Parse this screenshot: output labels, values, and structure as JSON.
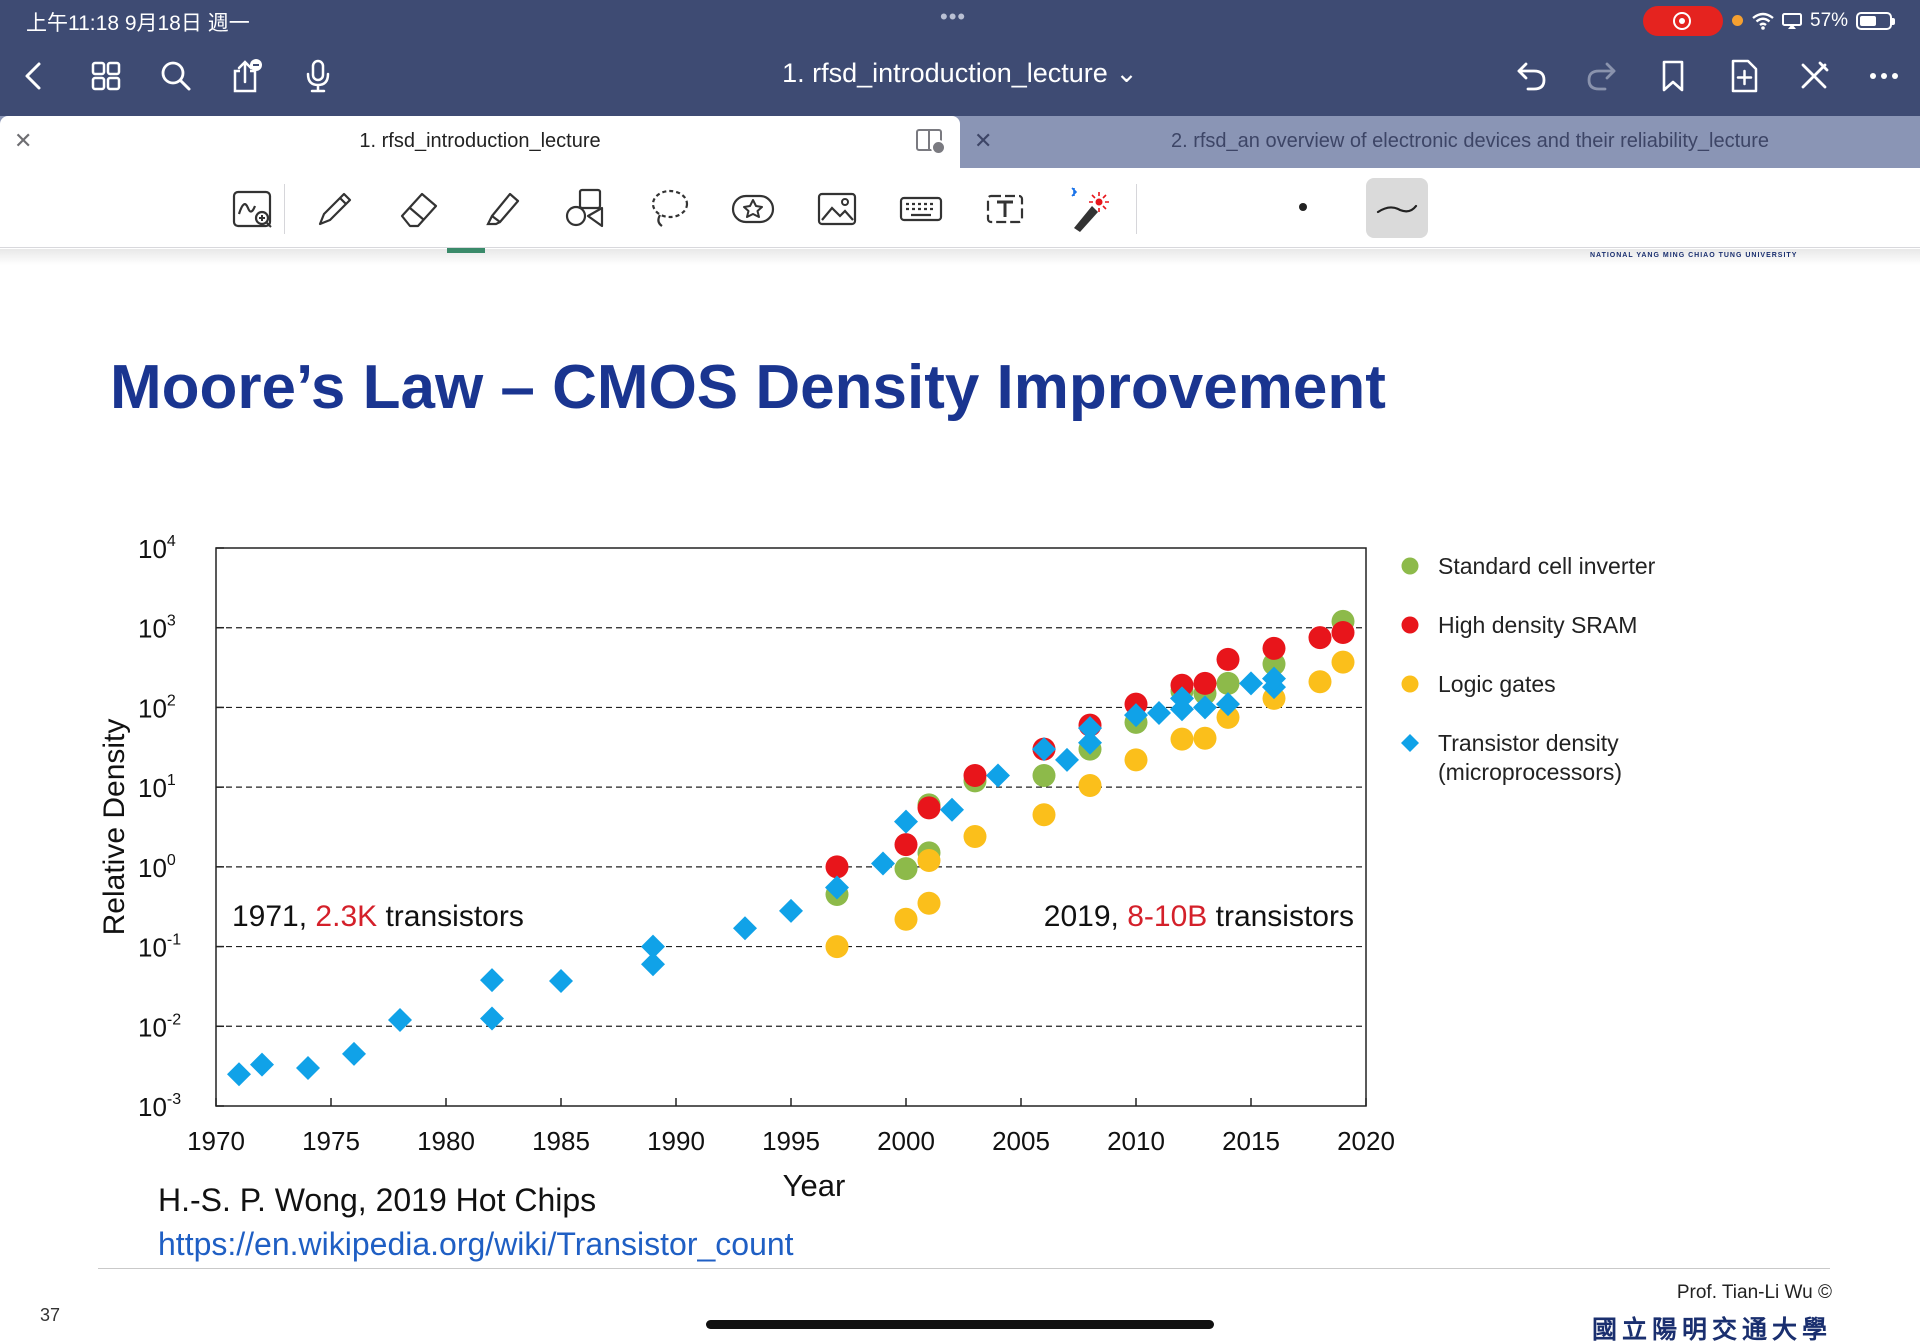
{
  "status_bar": {
    "time": "上午11:18  9月18日 週一",
    "dots": "•••",
    "battery": "57%",
    "battery_level": 0.57
  },
  "nav": {
    "document_title": "1. rfsd_introduction_lecture ⌄",
    "icons": [
      "back-icon",
      "grid-icon",
      "search-icon",
      "share-icon",
      "microphone-icon",
      "undo-icon",
      "redo-icon",
      "bookmark-icon",
      "add-page-icon",
      "close-tools-icon",
      "more-icon"
    ]
  },
  "tabs": [
    {
      "label": "1. rfsd_introduction_lecture",
      "active": true
    },
    {
      "label": "2. rfsd_an overview of electronic devices and their reliability_lecture",
      "active": false
    }
  ],
  "tools": [
    "handwriting-zoom-icon",
    "pen-icon",
    "eraser-icon",
    "highlighter-icon",
    "shapes-icon",
    "lasso-icon",
    "sticker-icon",
    "image-icon",
    "keyboard-icon",
    "text-box-icon",
    "laser-pointer-icon"
  ],
  "slide": {
    "title": "Moore’s Law – CMOS Density Improvement",
    "credit": "H.-S. P. Wong, 2019 Hot Chips",
    "link": "https://en.wikipedia.org/wiki/Transistor_count",
    "page_number": "37",
    "professor": "Prof. Tian-Li Wu ©",
    "university": "國立陽明交通大學"
  },
  "chart_data": {
    "type": "scatter",
    "xlabel": "Year",
    "ylabel": "Relative Density",
    "xlim": [
      1970,
      2020
    ],
    "ylim_exponent": [
      -3,
      4
    ],
    "y_scale": "log",
    "x_ticks": [
      "1970",
      "1975",
      "1980",
      "1985",
      "1990",
      "1995",
      "2000",
      "2005",
      "2010",
      "2015",
      "2020"
    ],
    "y_ticks": [
      {
        "base": "10",
        "exp": "-3"
      },
      {
        "base": "10",
        "exp": "-2"
      },
      {
        "base": "10",
        "exp": "-1"
      },
      {
        "base": "10",
        "exp": "0"
      },
      {
        "base": "10",
        "exp": "1"
      },
      {
        "base": "10",
        "exp": "2"
      },
      {
        "base": "10",
        "exp": "3"
      },
      {
        "base": "10",
        "exp": "4"
      }
    ],
    "grid": "dashed horizontal",
    "legend_position": "right",
    "annotations": [
      {
        "pre": "1971, ",
        "highlight": "2.3K",
        "post": " transistors"
      },
      {
        "pre": "2019, ",
        "highlight": "8-10B",
        "post": " transistors"
      }
    ],
    "series": [
      {
        "name": "Standard cell inverter",
        "marker": "circle",
        "color": "#8dba4a",
        "points": [
          [
            1997,
            0.45
          ],
          [
            2000,
            0.95
          ],
          [
            2001,
            1.5
          ],
          [
            2001,
            6
          ],
          [
            2003,
            12
          ],
          [
            2006,
            14
          ],
          [
            2008,
            30
          ],
          [
            2010,
            65
          ],
          [
            2012,
            160
          ],
          [
            2013,
            150
          ],
          [
            2014,
            200
          ],
          [
            2016,
            350
          ],
          [
            2019,
            1200
          ]
        ]
      },
      {
        "name": "High density SRAM",
        "marker": "circle",
        "color": "#e8151b",
        "points": [
          [
            1997,
            1.0
          ],
          [
            2000,
            1.9
          ],
          [
            2001,
            5.5
          ],
          [
            2003,
            14
          ],
          [
            2006,
            30
          ],
          [
            2008,
            60
          ],
          [
            2010,
            110
          ],
          [
            2012,
            190
          ],
          [
            2013,
            200
          ],
          [
            2014,
            400
          ],
          [
            2016,
            550
          ],
          [
            2018,
            750
          ],
          [
            2019,
            870
          ]
        ]
      },
      {
        "name": "Logic gates",
        "marker": "circle",
        "color": "#fbbf1b",
        "points": [
          [
            1997,
            0.1
          ],
          [
            2000,
            0.22
          ],
          [
            2001,
            0.35
          ],
          [
            2001,
            1.2
          ],
          [
            2003,
            2.4
          ],
          [
            2006,
            4.5
          ],
          [
            2008,
            10.5
          ],
          [
            2010,
            22
          ],
          [
            2012,
            40
          ],
          [
            2013,
            41
          ],
          [
            2014,
            75
          ],
          [
            2016,
            130
          ],
          [
            2018,
            210
          ],
          [
            2019,
            370
          ]
        ]
      },
      {
        "name": "Transistor density (microprocessors)",
        "marker": "diamond",
        "color": "#10a2e8",
        "points": [
          [
            1971,
            0.0025
          ],
          [
            1972,
            0.0033
          ],
          [
            1974,
            0.003
          ],
          [
            1976,
            0.0045
          ],
          [
            1978,
            0.012
          ],
          [
            1982,
            0.038
          ],
          [
            1982,
            0.0125
          ],
          [
            1985,
            0.037
          ],
          [
            1989,
            0.1
          ],
          [
            1989,
            0.06
          ],
          [
            1993,
            0.17
          ],
          [
            1995,
            0.28
          ],
          [
            1997,
            0.55
          ],
          [
            1999,
            1.1
          ],
          [
            2000,
            3.7
          ],
          [
            2002,
            5.2
          ],
          [
            2004,
            14
          ],
          [
            2006,
            30
          ],
          [
            2007,
            22
          ],
          [
            2008,
            36
          ],
          [
            2008,
            55
          ],
          [
            2010,
            80
          ],
          [
            2011,
            85
          ],
          [
            2012,
            95
          ],
          [
            2012,
            130
          ],
          [
            2013,
            100
          ],
          [
            2014,
            110
          ],
          [
            2015,
            200
          ],
          [
            2016,
            180
          ],
          [
            2016,
            230
          ]
        ]
      }
    ]
  }
}
